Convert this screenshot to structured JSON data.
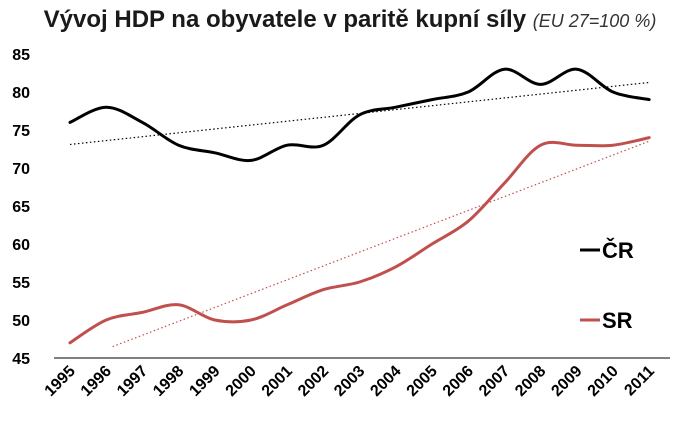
{
  "chart_data": {
    "type": "line",
    "title": "Vývoj HDP na obyvatele v paritě kupní síly",
    "subtitle": "(EU 27=100 %)",
    "xlabel": "",
    "ylabel": "",
    "x": [
      "1995",
      "1996",
      "1997",
      "1998",
      "1999",
      "2000",
      "2001",
      "2002",
      "2003",
      "2004",
      "2005",
      "2006",
      "2007",
      "2008",
      "2009",
      "2010",
      "2011"
    ],
    "ylim": [
      45,
      85
    ],
    "yticks": [
      45,
      50,
      55,
      60,
      65,
      70,
      75,
      80,
      85
    ],
    "grid": false,
    "legend_position": "right",
    "series": [
      {
        "name": "ČR",
        "color": "#000000",
        "trendline": true,
        "values": [
          76,
          78,
          76,
          73,
          72,
          71,
          73,
          73,
          77,
          78,
          79,
          80,
          83,
          81,
          83,
          80,
          79
        ]
      },
      {
        "name": "SR",
        "color": "#c0504d",
        "trendline": true,
        "values": [
          47,
          50,
          51,
          52,
          50,
          50,
          52,
          54,
          55,
          57,
          60,
          63,
          68,
          73,
          73,
          73,
          74
        ]
      }
    ]
  }
}
